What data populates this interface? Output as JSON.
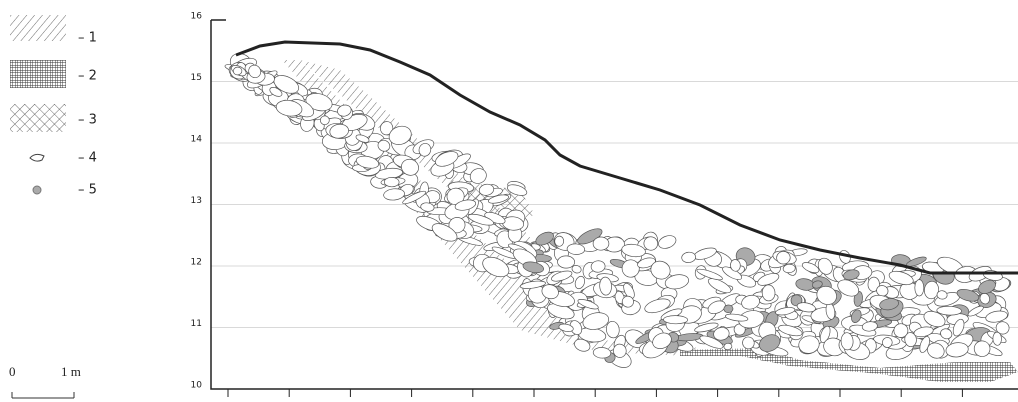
{
  "legend": [
    {
      "label": "– 1"
    },
    {
      "label": "– 2"
    },
    {
      "label": "– 3"
    },
    {
      "label": "– 4"
    },
    {
      "label": "– 5"
    }
  ],
  "axis": {
    "ticks": [
      "16",
      "15",
      "14",
      "13",
      "12",
      "11",
      "10"
    ]
  },
  "scale": {
    "start": "0",
    "end": "1 m"
  }
}
